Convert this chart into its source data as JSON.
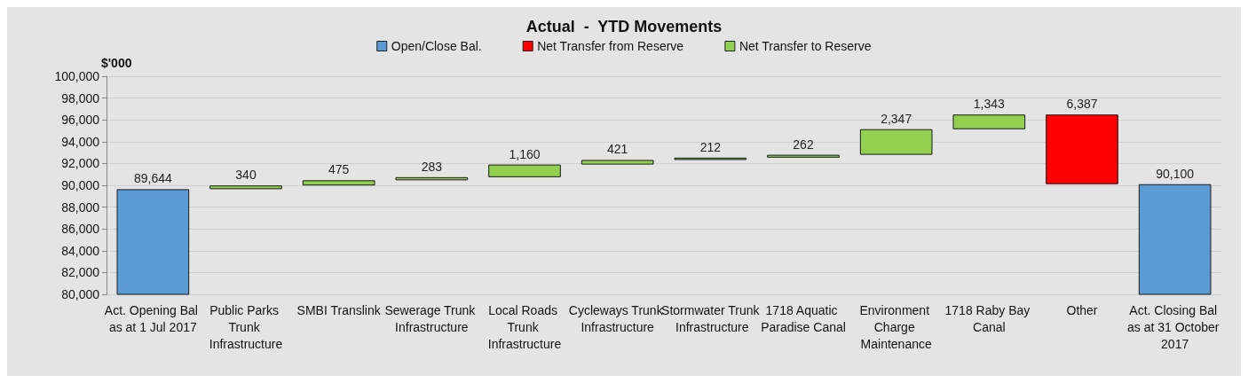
{
  "chart_data": {
    "type": "bar",
    "title": "Actual  -  YTD Movements",
    "ylabel": "$'000",
    "categories": [
      "Act. Opening Bal as at 1 Jul 2017",
      "Public Parks Trunk Infrastructure",
      "SMBI Translink",
      "Sewerage Trunk Infrastructure",
      "Local Roads Trunk Infrastructure",
      "Cycleways Trunk Infrastructure",
      "Stormwater Trunk Infrastructure",
      "1718 Aquatic Paradise Canal",
      "Environment Charge Maintenance",
      "1718 Raby Bay Canal",
      "Other",
      "Act. Closing Bal as at 31 October 2017"
    ],
    "series": [
      {
        "name": "Open/Close Bal.",
        "color": "#5b9bd5",
        "values": [
          89644,
          null,
          null,
          null,
          null,
          null,
          null,
          null,
          null,
          null,
          null,
          90100
        ]
      },
      {
        "name": "Net Transfer from Reserve",
        "color": "#ff0000",
        "base": [
          null,
          null,
          null,
          null,
          null,
          null,
          null,
          null,
          null,
          null,
          96487,
          null
        ],
        "values": [
          null,
          null,
          null,
          null,
          null,
          null,
          null,
          null,
          null,
          null,
          -6387,
          null
        ]
      },
      {
        "name": "Net Transfer to Reserve",
        "color": "#92d050",
        "base": [
          null,
          89644,
          89984,
          90459,
          90742,
          91902,
          92323,
          92535,
          92797,
          95144,
          null,
          null
        ],
        "values": [
          null,
          340,
          475,
          283,
          1160,
          421,
          212,
          262,
          2347,
          1343,
          null,
          null
        ]
      }
    ],
    "value_labels": [
      "89,644",
      "340",
      "475",
      "283",
      "1,160",
      "421",
      "212",
      "262",
      "2,347",
      "1,343",
      "6,387",
      "90,100"
    ],
    "ylim": [
      80000,
      100000
    ],
    "yticks": [
      {
        "value": 80000,
        "label": "80,000"
      },
      {
        "value": 82000,
        "label": "82,000"
      },
      {
        "value": 84000,
        "label": "84,000"
      },
      {
        "value": 86000,
        "label": "86,000"
      },
      {
        "value": 88000,
        "label": "88,000"
      },
      {
        "value": 90000,
        "label": "90,000"
      },
      {
        "value": 92000,
        "label": "92,000"
      },
      {
        "value": 94000,
        "label": "94,000"
      },
      {
        "value": 96000,
        "label": "96,000"
      },
      {
        "value": 98000,
        "label": "98,000"
      },
      {
        "value": 100000,
        "label": "100,000"
      }
    ],
    "grid": "y",
    "legend": "top"
  }
}
